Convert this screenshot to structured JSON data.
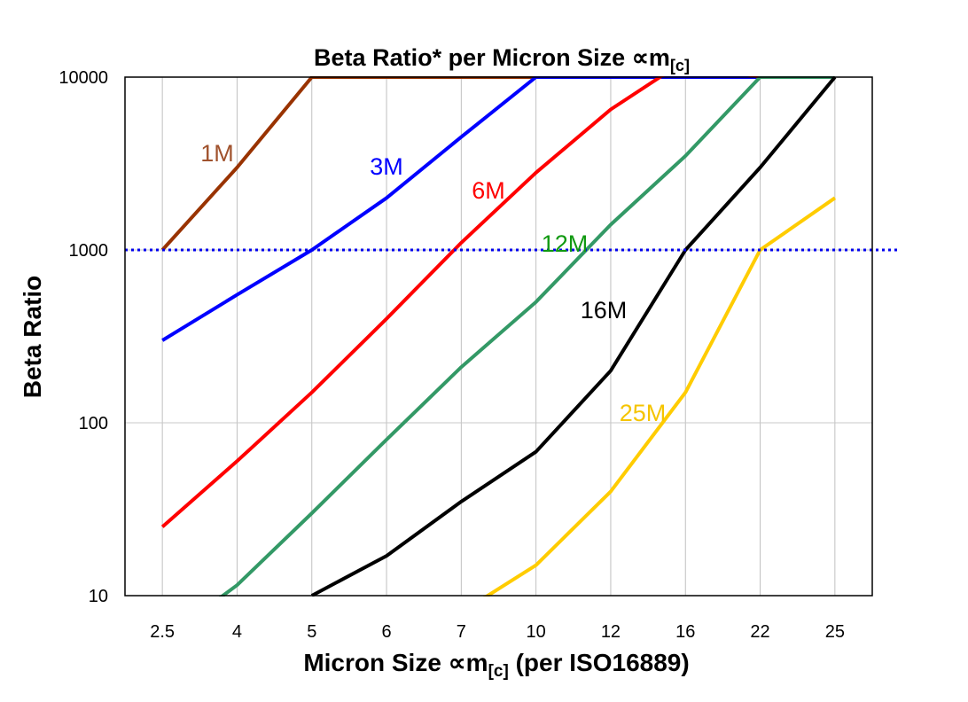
{
  "chart_data": {
    "type": "line",
    "title": {
      "main": "Beta Ratio* per Micron Size ∝m",
      "sub": "[c]"
    },
    "xlabel": {
      "main": "Micron Size ∝m",
      "sub": "[c]",
      "tail": " (per ISO16889)"
    },
    "ylabel": "Beta Ratio",
    "categories": [
      "2.5",
      "4",
      "5",
      "6",
      "7",
      "10",
      "12",
      "16",
      "22",
      "25"
    ],
    "y_scale": "log",
    "ylim": [
      10,
      10000
    ],
    "y_ticks": [
      10,
      100,
      1000,
      10000
    ],
    "y_tick_labels": [
      "10",
      "100",
      "1000",
      "10000"
    ],
    "grid": true,
    "reference_line": {
      "y": 1000,
      "style": "dotted",
      "color": "#0000EE"
    },
    "series": [
      {
        "name": "1M",
        "color": "#993300",
        "label_color": "#A0522D",
        "values": [
          1000,
          3000,
          10000,
          10000,
          10000,
          10000,
          10000,
          10000,
          10000,
          10000
        ]
      },
      {
        "name": "3M",
        "color": "#0000FF",
        "label_color": "#0000FF",
        "values": [
          300,
          550,
          1000,
          2000,
          4500,
          10000,
          10000,
          10000,
          10000,
          10000
        ]
      },
      {
        "name": "6M",
        "color": "#FF0000",
        "label_color": "#FF0000",
        "values": [
          25,
          60,
          150,
          400,
          1100,
          2800,
          6500,
          12500,
          10000,
          10000
        ]
      },
      {
        "name": "12M",
        "color": "#339966",
        "label_color": "#119911",
        "values": [
          5.5,
          11.5,
          30,
          80,
          210,
          500,
          1400,
          3500,
          10000,
          10000
        ]
      },
      {
        "name": "16M",
        "color": "#000000",
        "label_color": "#000000",
        "values": [
          null,
          null,
          10,
          17,
          35,
          68,
          200,
          1000,
          3000,
          10000
        ]
      },
      {
        "name": "25M",
        "color": "#FFCC00",
        "label_color": "#F5C400",
        "values": [
          null,
          null,
          null,
          null,
          8,
          15,
          40,
          150,
          1000,
          2000
        ]
      }
    ]
  }
}
